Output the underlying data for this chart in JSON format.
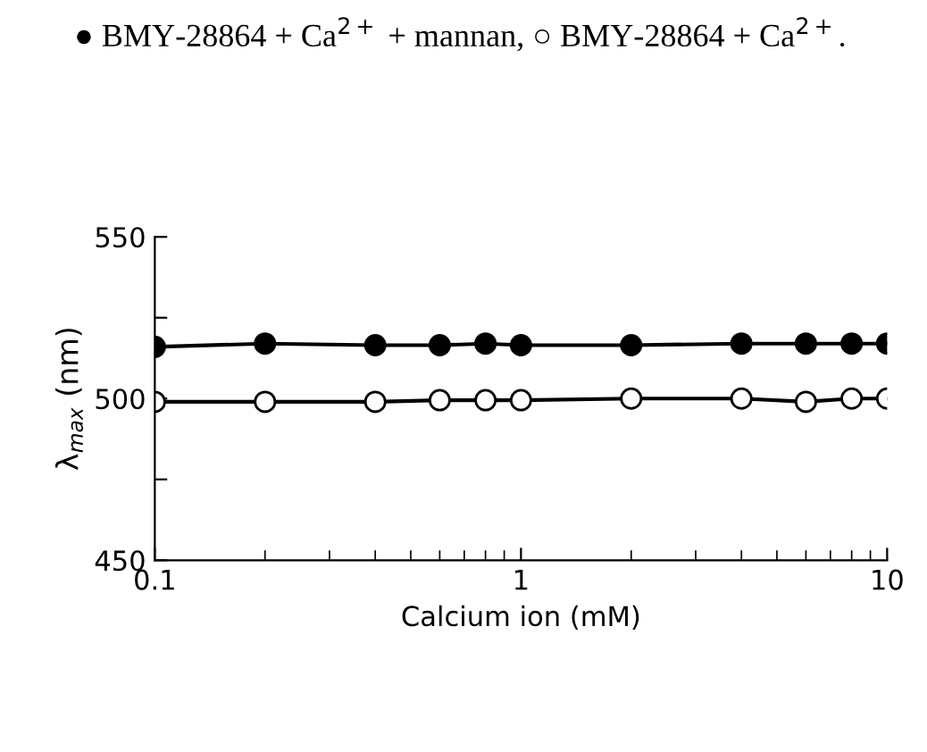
{
  "chart_data": {
    "type": "line",
    "title": "● BMY-28864 + Ca$^{2+}$ + mannan, ○ BMY-28864 + Ca$^{2+}$.",
    "xlabel": "Calcium ion (mM)",
    "ylabel": "λ$_{max}$ (nm)",
    "x": [
      0.1,
      0.2,
      0.4,
      0.6,
      0.8,
      1,
      2,
      4,
      6,
      8,
      10
    ],
    "series": [
      {
        "color": "#000000",
        "values": [
          516,
          517,
          516.5,
          516.5,
          517,
          516.5,
          516.5,
          517,
          517,
          517,
          517
        ]
      },
      {
        "color": "#ffffff",
        "values": [
          499,
          499,
          499,
          499.5,
          499.5,
          499.5,
          500,
          500,
          499,
          500,
          500
        ]
      }
    ],
    "log": "x",
    "marker": "circle",
    "line_style": "solid",
    "grid": false,
    "legend": false,
    "xlim": [
      0.1,
      10
    ],
    "xticks": [
      0.1,
      1,
      10
    ],
    "ylim": [
      450,
      550
    ],
    "yticks": [
      450,
      {
        "value": 475,
        "label": null
      },
      500,
      {
        "value": 525,
        "label": null
      },
      550
    ]
  }
}
